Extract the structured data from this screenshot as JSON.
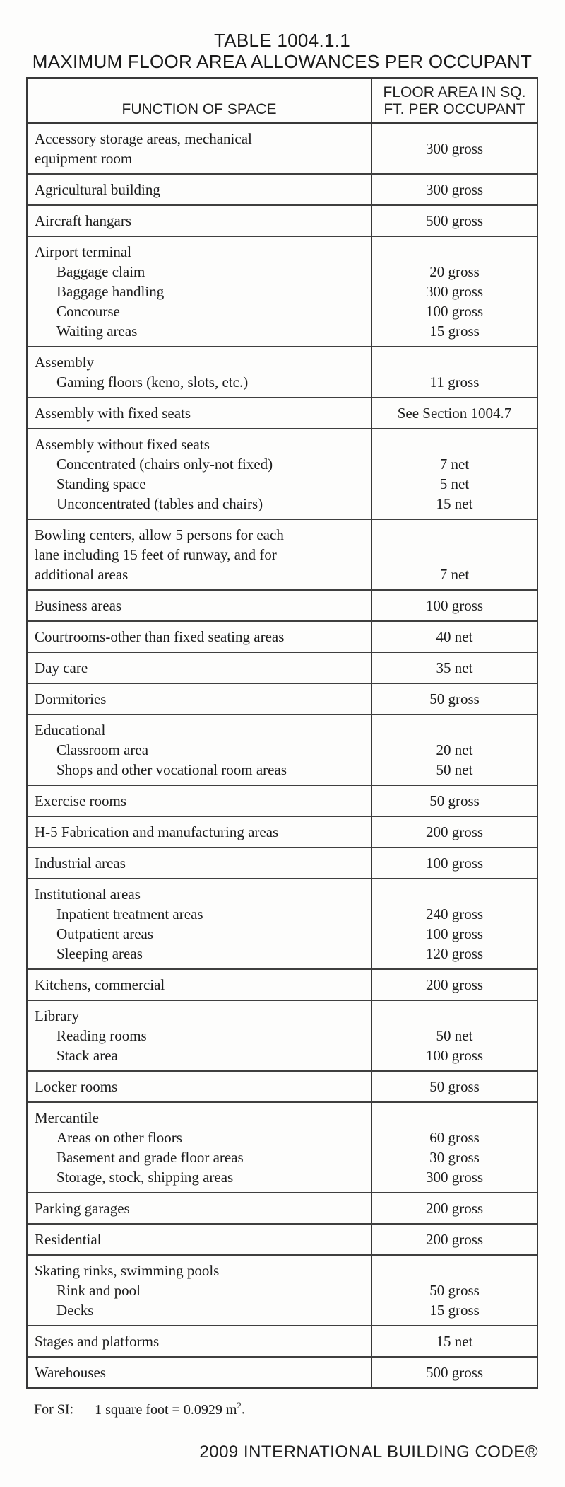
{
  "page": {
    "title_line1": "TABLE 1004.1.1",
    "title_line2": "MAXIMUM FLOOR AREA ALLOWANCES PER OCCUPANT",
    "footer_si": "For SI:",
    "footer_conversion": "1 square foot = 0.0929 m",
    "footer_sup": "2",
    "footer_period": ".",
    "bottom_right": "2009 INTERNATIONAL BUILDING CODE®"
  },
  "colors": {
    "text": "#1c1c1c",
    "border": "#383838",
    "background": "#fdfdfc"
  },
  "table": {
    "col1_header": "FUNCTION OF SPACE",
    "col2_header_line1": "FLOOR AREA IN SQ.",
    "col2_header_line2": "FT. PER OCCUPANT",
    "rows": [
      {
        "lines": [
          {
            "text": "Accessory storage areas, mechanical"
          },
          {
            "text": "equipment room"
          }
        ],
        "value": "300 gross"
      },
      {
        "lines": [
          {
            "text": "Agricultural building"
          }
        ],
        "value": "300 gross"
      },
      {
        "lines": [
          {
            "text": "Aircraft hangars"
          }
        ],
        "value": "500 gross"
      },
      {
        "lines": [
          {
            "text": "Airport terminal"
          },
          {
            "text": "Baggage claim",
            "indent": true
          },
          {
            "text": "Baggage handling",
            "indent": true
          },
          {
            "text": "Concourse",
            "indent": true
          },
          {
            "text": "Waiting areas",
            "indent": true
          }
        ],
        "line_values": [
          "",
          "20 gross",
          "300 gross",
          "100 gross",
          "15 gross"
        ]
      },
      {
        "lines": [
          {
            "text": "Assembly"
          },
          {
            "text": "Gaming floors (keno, slots, etc.)",
            "indent": true
          }
        ],
        "line_values": [
          "",
          "11 gross"
        ]
      },
      {
        "lines": [
          {
            "text": "Assembly with fixed seats"
          }
        ],
        "value": "See Section 1004.7"
      },
      {
        "lines": [
          {
            "text": "Assembly without fixed seats"
          },
          {
            "text": "Concentrated (chairs only-not fixed)",
            "indent": true
          },
          {
            "text": "Standing space",
            "indent": true
          },
          {
            "text": "Unconcentrated (tables and chairs)",
            "indent": true
          }
        ],
        "line_values": [
          "",
          "7 net",
          "5 net",
          "15 net"
        ]
      },
      {
        "lines": [
          {
            "text": "Bowling centers, allow 5 persons for each"
          },
          {
            "text": "lane including 15 feet of runway, and for"
          },
          {
            "text": "additional areas"
          }
        ],
        "line_values": [
          "",
          "",
          "7 net"
        ]
      },
      {
        "lines": [
          {
            "text": "Business areas"
          }
        ],
        "value": "100 gross"
      },
      {
        "lines": [
          {
            "text": "Courtrooms-other than fixed seating areas"
          }
        ],
        "value": "40 net"
      },
      {
        "lines": [
          {
            "text": "Day care"
          }
        ],
        "value": "35 net"
      },
      {
        "lines": [
          {
            "text": "Dormitories"
          }
        ],
        "value": "50 gross"
      },
      {
        "lines": [
          {
            "text": "Educational"
          },
          {
            "text": "Classroom area",
            "indent": true
          },
          {
            "text": "Shops and other vocational room areas",
            "indent": true
          }
        ],
        "line_values": [
          "",
          "20 net",
          "50 net"
        ]
      },
      {
        "lines": [
          {
            "text": "Exercise rooms"
          }
        ],
        "value": "50 gross"
      },
      {
        "lines": [
          {
            "text": "H-5 Fabrication and manufacturing areas"
          }
        ],
        "value": "200 gross"
      },
      {
        "lines": [
          {
            "text": "Industrial areas"
          }
        ],
        "value": "100 gross"
      },
      {
        "lines": [
          {
            "text": "Institutional areas"
          },
          {
            "text": "Inpatient treatment areas",
            "indent": true
          },
          {
            "text": "Outpatient areas",
            "indent": true
          },
          {
            "text": "Sleeping areas",
            "indent": true
          }
        ],
        "line_values": [
          "",
          "240 gross",
          "100 gross",
          "120 gross"
        ]
      },
      {
        "lines": [
          {
            "text": "Kitchens, commercial"
          }
        ],
        "value": "200 gross"
      },
      {
        "lines": [
          {
            "text": "Library"
          },
          {
            "text": "Reading rooms",
            "indent": true
          },
          {
            "text": "Stack area",
            "indent": true
          }
        ],
        "line_values": [
          "",
          "50 net",
          "100 gross"
        ]
      },
      {
        "lines": [
          {
            "text": "Locker rooms"
          }
        ],
        "value": "50 gross"
      },
      {
        "lines": [
          {
            "text": "Mercantile"
          },
          {
            "text": "Areas on other floors",
            "indent": true
          },
          {
            "text": "Basement and grade floor areas",
            "indent": true
          },
          {
            "text": "Storage, stock, shipping areas",
            "indent": true
          }
        ],
        "line_values": [
          "",
          "60 gross",
          "30 gross",
          "300 gross"
        ]
      },
      {
        "lines": [
          {
            "text": "Parking garages"
          }
        ],
        "value": "200 gross"
      },
      {
        "lines": [
          {
            "text": "Residential"
          }
        ],
        "value": "200 gross"
      },
      {
        "lines": [
          {
            "text": "Skating rinks, swimming pools"
          },
          {
            "text": "Rink and pool",
            "indent": true
          },
          {
            "text": "Decks",
            "indent": true
          }
        ],
        "line_values": [
          "",
          "50 gross",
          "15 gross"
        ]
      },
      {
        "lines": [
          {
            "text": "Stages and platforms"
          }
        ],
        "value": "15 net"
      },
      {
        "lines": [
          {
            "text": "Warehouses"
          }
        ],
        "value": "500 gross"
      }
    ]
  }
}
